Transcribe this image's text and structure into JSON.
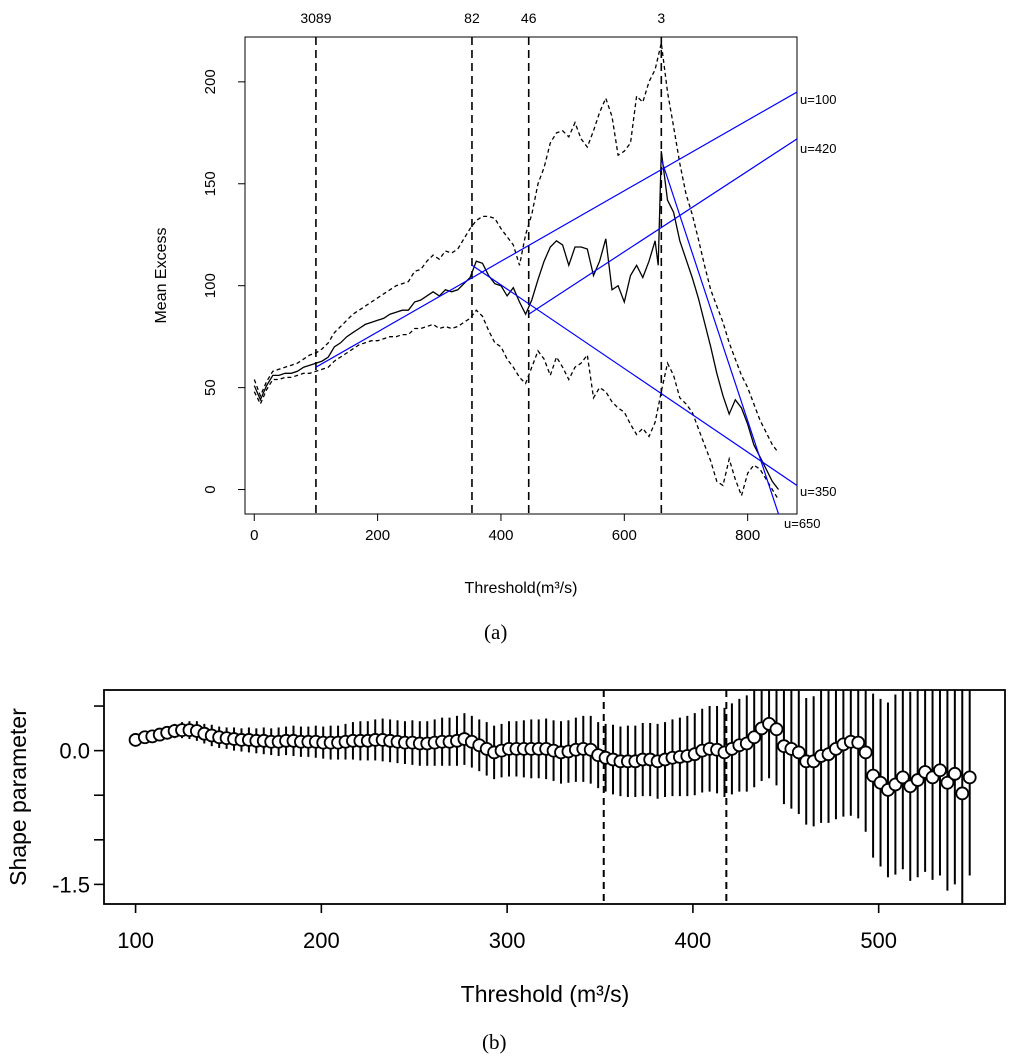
{
  "chart_data": [
    {
      "type": "line",
      "panel_label": "(a)",
      "title": "",
      "xlabel": "Threshold(m³/s)",
      "ylabel": "Mean Excess",
      "xlim": [
        -15,
        880
      ],
      "ylim": [
        -12,
        222
      ],
      "xticks": [
        0,
        200,
        400,
        600,
        800
      ],
      "yticks": [
        0,
        50,
        100,
        150,
        200
      ],
      "grid": false,
      "legend": "none",
      "top_axis_labels": [
        {
          "x": 100,
          "label": "3089"
        },
        {
          "x": 353,
          "label": "82"
        },
        {
          "x": 445,
          "label": "46"
        },
        {
          "x": 660,
          "label": "3"
        }
      ],
      "vlines_dashed": [
        100,
        353,
        445,
        660
      ],
      "series": [
        {
          "role": "mean-excess",
          "color": "#000000",
          "dash": "solid",
          "x": [
            0,
            10,
            20,
            30,
            40,
            50,
            60,
            70,
            80,
            90,
            100,
            110,
            120,
            130,
            140,
            150,
            160,
            170,
            180,
            190,
            200,
            210,
            220,
            230,
            240,
            250,
            260,
            270,
            280,
            290,
            300,
            310,
            320,
            330,
            340,
            350,
            360,
            370,
            380,
            390,
            400,
            410,
            420,
            430,
            440,
            450,
            460,
            470,
            480,
            490,
            500,
            510,
            520,
            530,
            540,
            550,
            560,
            570,
            580,
            590,
            600,
            610,
            620,
            630,
            640,
            650,
            655,
            660,
            670,
            680,
            690,
            700,
            710,
            720,
            730,
            740,
            750,
            760,
            770,
            780,
            790,
            800,
            810,
            820,
            830,
            840,
            850
          ],
          "y": [
            51,
            44,
            51,
            56,
            56,
            57,
            57,
            58,
            60,
            61,
            62,
            63,
            65,
            70,
            72,
            75,
            77,
            79,
            81,
            82,
            83,
            84,
            86,
            87,
            88,
            88,
            92,
            93,
            95,
            97,
            95,
            98,
            97,
            98,
            101,
            104,
            112,
            111,
            105,
            101,
            100,
            95,
            99,
            92,
            86,
            93,
            103,
            112,
            119,
            122,
            120,
            110,
            119,
            119,
            118,
            105,
            112,
            123,
            98,
            100,
            92,
            105,
            110,
            104,
            112,
            122,
            110,
            166,
            142,
            136,
            122,
            113,
            104,
            94,
            82,
            70,
            57,
            46,
            37,
            44,
            40,
            32,
            22,
            16,
            10,
            4,
            0
          ]
        },
        {
          "role": "confidence-upper",
          "color": "#000000",
          "dash": "dashed",
          "x": [
            0,
            10,
            20,
            30,
            40,
            50,
            60,
            70,
            80,
            90,
            100,
            110,
            120,
            130,
            140,
            150,
            160,
            170,
            180,
            190,
            200,
            210,
            220,
            230,
            240,
            250,
            260,
            270,
            280,
            290,
            300,
            310,
            320,
            330,
            340,
            350,
            360,
            370,
            380,
            390,
            400,
            410,
            420,
            430,
            440,
            450,
            460,
            470,
            480,
            490,
            500,
            510,
            520,
            530,
            540,
            550,
            560,
            570,
            580,
            590,
            600,
            610,
            620,
            630,
            640,
            650,
            660,
            670,
            680,
            690,
            700,
            710,
            720,
            730,
            740,
            750,
            760,
            770,
            780,
            790,
            800,
            810,
            820,
            830,
            840,
            850
          ],
          "y": [
            54,
            46,
            53,
            58,
            59,
            60,
            61,
            62,
            64,
            66,
            67,
            69,
            72,
            77,
            80,
            83,
            86,
            88,
            90,
            92,
            94,
            96,
            98,
            100,
            101,
            102,
            107,
            108,
            112,
            115,
            113,
            117,
            116,
            118,
            123,
            128,
            132,
            134,
            134,
            133,
            128,
            124,
            120,
            110,
            125,
            135,
            150,
            158,
            170,
            175,
            176,
            173,
            180,
            172,
            168,
            176,
            185,
            192,
            183,
            164,
            166,
            170,
            193,
            190,
            200,
            206,
            219,
            195,
            178,
            160,
            145,
            135,
            123,
            110,
            98,
            90,
            82,
            72,
            64,
            56,
            50,
            42,
            34,
            28,
            22,
            18
          ]
        },
        {
          "role": "confidence-lower",
          "color": "#000000",
          "dash": "dashed",
          "x": [
            0,
            10,
            20,
            30,
            40,
            50,
            60,
            70,
            80,
            90,
            100,
            110,
            120,
            130,
            140,
            150,
            160,
            170,
            180,
            190,
            200,
            210,
            220,
            230,
            240,
            250,
            260,
            270,
            280,
            290,
            300,
            310,
            320,
            330,
            340,
            350,
            360,
            370,
            380,
            390,
            400,
            410,
            420,
            430,
            440,
            450,
            460,
            470,
            480,
            490,
            500,
            510,
            520,
            530,
            540,
            550,
            560,
            570,
            580,
            590,
            600,
            610,
            620,
            630,
            640,
            650,
            660,
            670,
            680,
            690,
            700,
            710,
            720,
            730,
            740,
            750,
            760,
            770,
            780,
            790,
            800,
            810,
            820,
            830,
            840,
            850
          ],
          "y": [
            48,
            42,
            49,
            54,
            54,
            55,
            55,
            56,
            57,
            57,
            58,
            59,
            60,
            63,
            65,
            67,
            69,
            71,
            72,
            73,
            73,
            74,
            75,
            75,
            76,
            76,
            79,
            79,
            80,
            81,
            79,
            80,
            79,
            80,
            82,
            84,
            88,
            85,
            78,
            72,
            70,
            64,
            60,
            55,
            52,
            60,
            68,
            64,
            56,
            65,
            60,
            54,
            60,
            62,
            66,
            45,
            50,
            48,
            43,
            40,
            38,
            32,
            27,
            30,
            26,
            33,
            48,
            62,
            56,
            45,
            42,
            38,
            30,
            22,
            14,
            4,
            2,
            15,
            5,
            -3,
            8,
            12,
            10,
            5,
            0,
            -5
          ]
        },
        {
          "role": "fit-u100",
          "label": "u=100",
          "color": "#0000ff",
          "dash": "solid",
          "x": [
            100,
            880
          ],
          "y": [
            60,
            195
          ]
        },
        {
          "role": "fit-u350",
          "label": "u=350",
          "color": "#0000ff",
          "dash": "solid",
          "x": [
            353,
            880
          ],
          "y": [
            110,
            2
          ]
        },
        {
          "role": "fit-u420",
          "label": "u=420",
          "color": "#0000ff",
          "dash": "solid",
          "x": [
            445,
            880
          ],
          "y": [
            86,
            172
          ]
        },
        {
          "role": "fit-u650",
          "label": "u=650",
          "color": "#0000ff",
          "dash": "solid",
          "x": [
            660,
            850
          ],
          "y": [
            162,
            -12
          ]
        }
      ]
    },
    {
      "type": "scatter",
      "panel_label": "(b)",
      "title": "",
      "xlabel": "Threshold (m³/s)",
      "ylabel": "Shape parameter",
      "xlim": [
        83,
        568
      ],
      "ylim": [
        -1.72,
        0.68
      ],
      "xticks": [
        100,
        200,
        300,
        400,
        500
      ],
      "yticks": [
        0.0,
        -1.5
      ],
      "ytick_labels": [
        "0.0",
        "-1.5"
      ],
      "grid": false,
      "legend": "none",
      "vlines_dashed": [
        352,
        418
      ],
      "series": [
        {
          "role": "estimate-with-ci",
          "color": "#000000",
          "marker": "circle-open",
          "x": [
            100,
            105,
            109,
            113,
            117,
            121,
            125,
            129,
            133,
            137,
            141,
            145,
            149,
            153,
            157,
            161,
            165,
            169,
            173,
            177,
            181,
            185,
            189,
            193,
            197,
            201,
            205,
            209,
            213,
            217,
            221,
            225,
            229,
            233,
            237,
            241,
            245,
            249,
            253,
            257,
            261,
            265,
            269,
            273,
            277,
            281,
            285,
            289,
            293,
            297,
            301,
            305,
            309,
            313,
            317,
            321,
            325,
            329,
            333,
            337,
            341,
            345,
            349,
            353,
            357,
            361,
            365,
            369,
            373,
            377,
            381,
            385,
            389,
            393,
            397,
            401,
            405,
            409,
            413,
            417,
            421,
            425,
            429,
            433,
            437,
            441,
            445,
            449,
            453,
            457,
            461,
            465,
            469,
            473,
            477,
            481,
            485,
            489,
            493,
            497,
            501,
            505,
            509,
            513,
            517,
            521,
            525,
            529,
            533,
            537,
            541,
            545,
            549
          ],
          "y": [
            0.12,
            0.15,
            0.16,
            0.18,
            0.2,
            0.22,
            0.23,
            0.23,
            0.22,
            0.19,
            0.17,
            0.15,
            0.14,
            0.13,
            0.12,
            0.12,
            0.11,
            0.11,
            0.1,
            0.1,
            0.11,
            0.11,
            0.1,
            0.1,
            0.1,
            0.09,
            0.09,
            0.09,
            0.1,
            0.11,
            0.11,
            0.11,
            0.12,
            0.12,
            0.11,
            0.1,
            0.09,
            0.09,
            0.08,
            0.08,
            0.09,
            0.1,
            0.1,
            0.11,
            0.13,
            0.1,
            0.06,
            0.02,
            -0.02,
            0.0,
            0.02,
            0.02,
            0.02,
            0.02,
            0.02,
            0.02,
            0.0,
            -0.02,
            -0.01,
            0.01,
            0.02,
            0.01,
            -0.05,
            -0.08,
            -0.1,
            -0.12,
            -0.12,
            -0.12,
            -0.1,
            -0.1,
            -0.12,
            -0.1,
            -0.08,
            -0.07,
            -0.06,
            -0.04,
            0.0,
            0.02,
            0.01,
            -0.02,
            0.02,
            0.06,
            0.08,
            0.15,
            0.25,
            0.3,
            0.24,
            0.05,
            0.02,
            -0.02,
            -0.12,
            -0.12,
            -0.06,
            -0.04,
            0.02,
            0.07,
            0.1,
            0.09,
            -0.02,
            -0.28,
            -0.36,
            -0.44,
            -0.38,
            -0.3,
            -0.4,
            -0.33,
            -0.24,
            -0.3,
            -0.22,
            -0.36,
            -0.26,
            -0.48,
            -0.3
          ],
          "ci_low": [
            0.08,
            0.1,
            0.1,
            0.12,
            0.13,
            0.14,
            0.14,
            0.13,
            0.11,
            0.08,
            0.05,
            0.03,
            0.02,
            0.0,
            -0.01,
            -0.02,
            -0.03,
            -0.04,
            -0.05,
            -0.06,
            -0.05,
            -0.06,
            -0.07,
            -0.07,
            -0.08,
            -0.09,
            -0.1,
            -0.1,
            -0.1,
            -0.1,
            -0.11,
            -0.11,
            -0.11,
            -0.12,
            -0.13,
            -0.14,
            -0.15,
            -0.16,
            -0.17,
            -0.17,
            -0.17,
            -0.17,
            -0.17,
            -0.17,
            -0.16,
            -0.19,
            -0.23,
            -0.28,
            -0.32,
            -0.3,
            -0.29,
            -0.29,
            -0.3,
            -0.31,
            -0.31,
            -0.32,
            -0.34,
            -0.37,
            -0.36,
            -0.35,
            -0.35,
            -0.37,
            -0.42,
            -0.46,
            -0.49,
            -0.51,
            -0.52,
            -0.52,
            -0.51,
            -0.51,
            -0.54,
            -0.52,
            -0.51,
            -0.51,
            -0.51,
            -0.5,
            -0.47,
            -0.46,
            -0.48,
            -0.52,
            -0.49,
            -0.46,
            -0.46,
            -0.41,
            -0.34,
            -0.31,
            -0.39,
            -0.6,
            -0.65,
            -0.71,
            -0.83,
            -0.85,
            -0.81,
            -0.81,
            -0.77,
            -0.74,
            -0.73,
            -0.76,
            -0.91,
            -1.2,
            -1.3,
            -1.42,
            -1.39,
            -1.33,
            -1.46,
            -1.42,
            -1.36,
            -1.45,
            -1.4,
            -1.57,
            -1.5,
            -1.72,
            -1.4
          ],
          "ci_high": [
            0.16,
            0.2,
            0.22,
            0.24,
            0.27,
            0.3,
            0.32,
            0.33,
            0.33,
            0.3,
            0.29,
            0.27,
            0.26,
            0.26,
            0.25,
            0.26,
            0.25,
            0.26,
            0.25,
            0.26,
            0.27,
            0.28,
            0.27,
            0.27,
            0.28,
            0.27,
            0.28,
            0.28,
            0.3,
            0.32,
            0.33,
            0.33,
            0.35,
            0.36,
            0.35,
            0.34,
            0.33,
            0.34,
            0.33,
            0.33,
            0.35,
            0.37,
            0.37,
            0.39,
            0.42,
            0.39,
            0.35,
            0.32,
            0.28,
            0.3,
            0.33,
            0.33,
            0.34,
            0.35,
            0.35,
            0.36,
            0.34,
            0.33,
            0.34,
            0.37,
            0.39,
            0.39,
            0.32,
            0.3,
            0.29,
            0.27,
            0.28,
            0.28,
            0.31,
            0.31,
            0.3,
            0.32,
            0.35,
            0.37,
            0.39,
            0.42,
            0.47,
            0.5,
            0.5,
            0.48,
            0.53,
            0.58,
            0.62,
            0.71,
            0.84,
            0.91,
            0.87,
            0.7,
            0.69,
            0.67,
            0.59,
            0.61,
            0.69,
            0.73,
            0.81,
            0.88,
            0.93,
            0.94,
            0.87,
            0.64,
            0.58,
            0.54,
            0.63,
            0.73,
            0.66,
            0.76,
            0.88,
            0.85,
            0.96,
            0.85,
            0.98,
            0.76,
            0.8
          ]
        }
      ]
    }
  ]
}
